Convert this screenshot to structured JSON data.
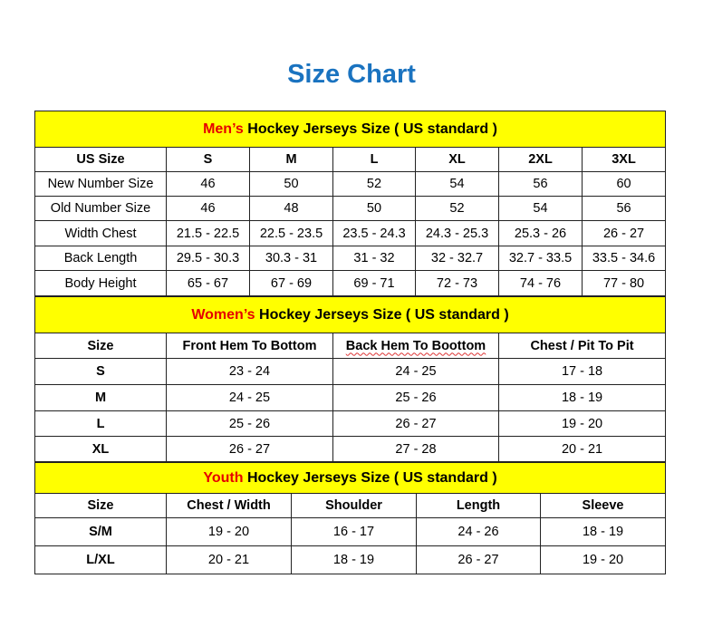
{
  "title": "Size Chart",
  "colors": {
    "title": "#1a73c0",
    "section_bg": "#ffff00",
    "highlight": "#e60000"
  },
  "men": {
    "heading_prefix": "Men’s",
    "heading_rest": " Hockey Jerseys Size ( US standard )",
    "columns": [
      "US Size",
      "S",
      "M",
      "L",
      "XL",
      "2XL",
      "3XL"
    ],
    "rows": [
      [
        "New Number Size",
        "46",
        "50",
        "52",
        "54",
        "56",
        "60"
      ],
      [
        "Old Number Size",
        "46",
        "48",
        "50",
        "52",
        "54",
        "56"
      ],
      [
        "Width Chest",
        "21.5 - 22.5",
        "22.5 - 23.5",
        "23.5 - 24.3",
        "24.3 - 25.3",
        "25.3 - 26",
        "26 - 27"
      ],
      [
        "Back Length",
        "29.5 - 30.3",
        "30.3 - 31",
        "31 - 32",
        "32 - 32.7",
        "32.7 - 33.5",
        "33.5 - 34.6"
      ],
      [
        "Body Height",
        "65 - 67",
        "67 - 69",
        "69 - 71",
        "72 - 73",
        "74 - 76",
        "77 - 80"
      ]
    ]
  },
  "women": {
    "heading_prefix": "Women’s",
    "heading_rest": " Hockey Jerseys Size ( US standard )",
    "columns": [
      "Size",
      "Front Hem To Bottom",
      "Back Hem To Boottom",
      "Chest / Pit To Pit"
    ],
    "rows": [
      [
        "S",
        "23 - 24",
        "24 - 25",
        "17 - 18"
      ],
      [
        "M",
        "24 - 25",
        "25 - 26",
        "18 - 19"
      ],
      [
        "L",
        "25 - 26",
        "26 - 27",
        "19 - 20"
      ],
      [
        "XL",
        "26 - 27",
        "27 - 28",
        "20 - 21"
      ]
    ]
  },
  "youth": {
    "heading_prefix": "Youth",
    "heading_rest": " Hockey Jerseys Size ( US standard )",
    "columns": [
      "Size",
      "Chest / Width",
      "Shoulder",
      "Length",
      "Sleeve"
    ],
    "rows": [
      [
        "S/M",
        "19 - 20",
        "16 - 17",
        "24 - 26",
        "18 - 19"
      ],
      [
        "L/XL",
        "20 - 21",
        "18 - 19",
        "26 - 27",
        "19 - 20"
      ]
    ]
  }
}
